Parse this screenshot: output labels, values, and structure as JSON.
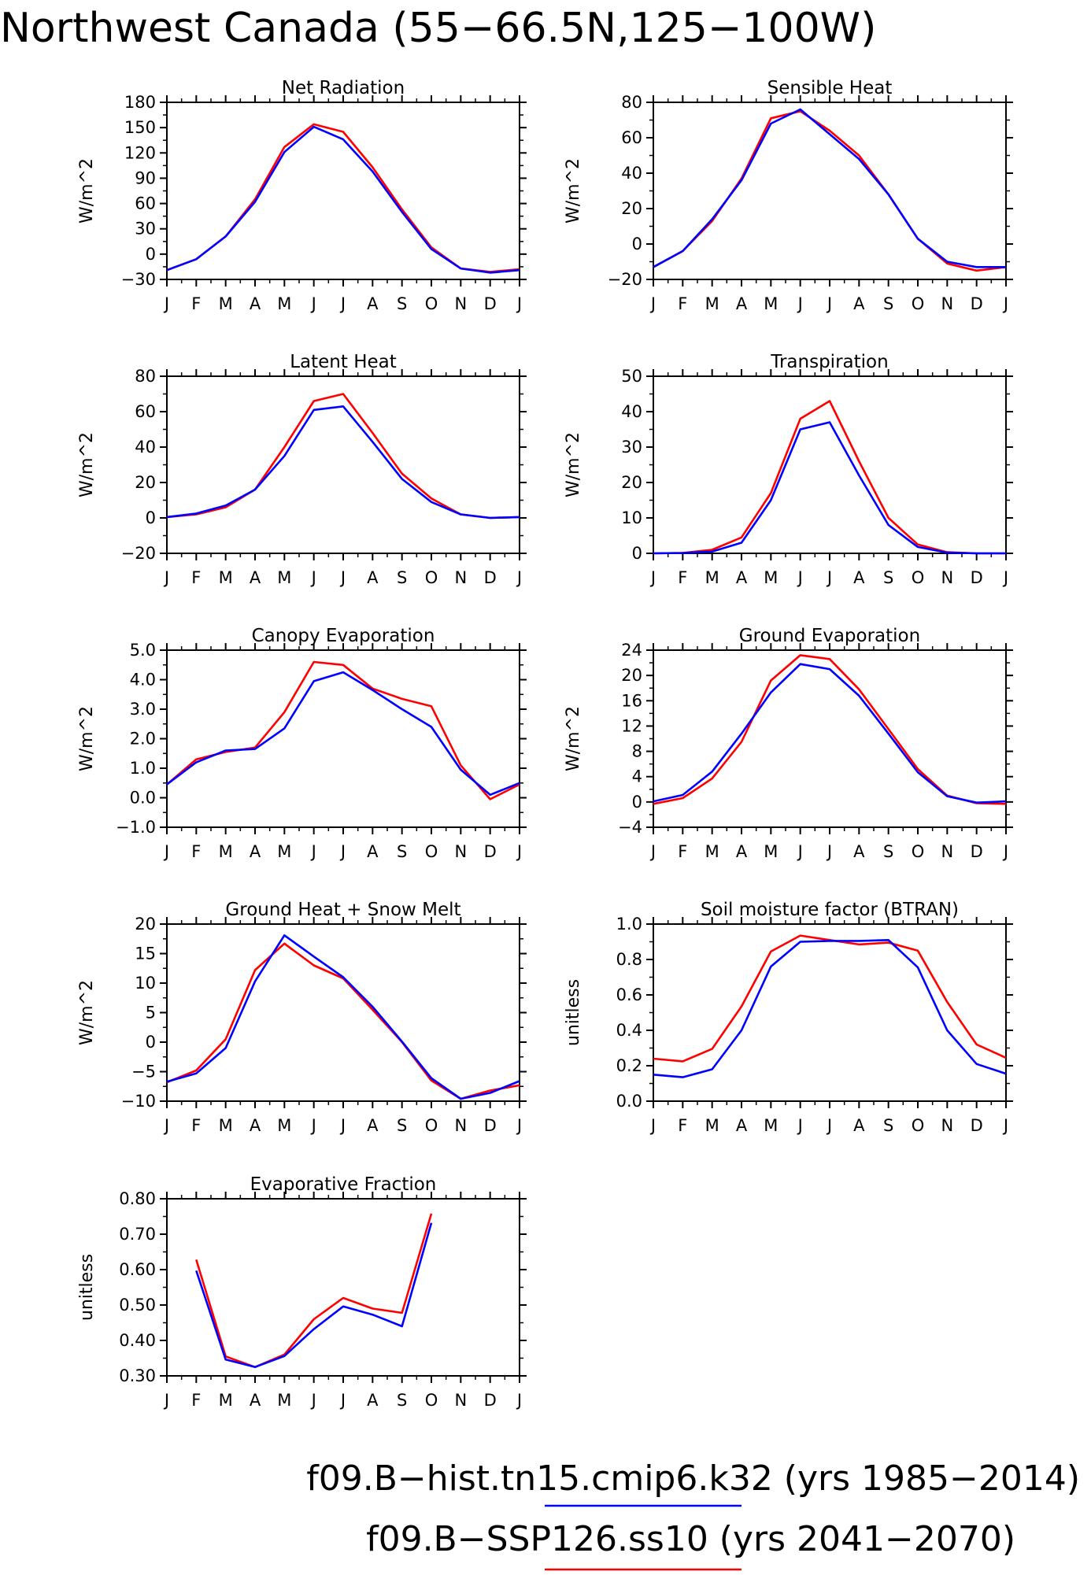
{
  "figure": {
    "title": "Northwest Canada (55−66.5N,125−100W)",
    "legend": [
      {
        "label": "f09.B−hist.tn15.cmip6.k32 (yrs 1985−2014)",
        "color": "#0000ff"
      },
      {
        "label": "f09.B−SSP126.ss10 (yrs 2041−2070)",
        "color": "#ff0000"
      }
    ]
  },
  "chart_data": [
    {
      "type": "line",
      "title": "Net Radiation",
      "ylabel": "W/m^2",
      "ylim": [
        -30,
        180
      ],
      "yticks": [
        "−30",
        "0",
        "30",
        "60",
        "90",
        "120",
        "150",
        "180"
      ],
      "categories": [
        "J",
        "F",
        "M",
        "A",
        "M",
        "J",
        "J",
        "A",
        "S",
        "O",
        "N",
        "D",
        "J"
      ],
      "series": [
        {
          "color": "#ff0000",
          "values": [
            -19,
            -6,
            21,
            65,
            127,
            154,
            145,
            103,
            53,
            8,
            -17,
            -21,
            -18
          ]
        },
        {
          "color": "#0000ff",
          "values": [
            -19,
            -6,
            21,
            62,
            121,
            151,
            136,
            98,
            50,
            6,
            -17,
            -22,
            -19
          ]
        }
      ]
    },
    {
      "type": "line",
      "title": "Sensible Heat",
      "ylabel": "W/m^2",
      "ylim": [
        -20,
        80
      ],
      "yticks": [
        "−20",
        "0",
        "20",
        "40",
        "60",
        "80"
      ],
      "categories": [
        "J",
        "F",
        "M",
        "A",
        "M",
        "J",
        "J",
        "A",
        "S",
        "O",
        "N",
        "D",
        "J"
      ],
      "series": [
        {
          "color": "#ff0000",
          "values": [
            -13,
            -4,
            13,
            37,
            71,
            75,
            64,
            50,
            28,
            3,
            -11,
            -15,
            -13
          ]
        },
        {
          "color": "#0000ff",
          "values": [
            -13,
            -4,
            14,
            36,
            68,
            76,
            62,
            48,
            28,
            3,
            -10,
            -13,
            -13
          ]
        }
      ]
    },
    {
      "type": "line",
      "title": "Latent Heat",
      "ylabel": "W/m^2",
      "ylim": [
        -20,
        80
      ],
      "yticks": [
        "−20",
        "0",
        "20",
        "40",
        "60",
        "80"
      ],
      "categories": [
        "J",
        "F",
        "M",
        "A",
        "M",
        "J",
        "J",
        "A",
        "S",
        "O",
        "N",
        "D",
        "J"
      ],
      "series": [
        {
          "color": "#ff0000",
          "values": [
            0.5,
            2,
            6,
            16,
            40,
            66,
            70,
            48,
            25,
            11,
            2,
            0,
            0.5
          ]
        },
        {
          "color": "#0000ff",
          "values": [
            0.5,
            2.5,
            7,
            16,
            35,
            61,
            63,
            43,
            22,
            9,
            2,
            0,
            0.5
          ]
        }
      ]
    },
    {
      "type": "line",
      "title": "Transpiration",
      "ylabel": "W/m^2",
      "ylim": [
        0,
        50
      ],
      "yticks": [
        "0",
        "10",
        "20",
        "30",
        "40",
        "50"
      ],
      "categories": [
        "J",
        "F",
        "M",
        "A",
        "M",
        "J",
        "J",
        "A",
        "S",
        "O",
        "N",
        "D",
        "J"
      ],
      "series": [
        {
          "color": "#ff0000",
          "values": [
            0,
            0.1,
            1,
            4.5,
            17,
            38,
            43,
            26,
            10,
            2.5,
            0.3,
            0,
            0
          ]
        },
        {
          "color": "#0000ff",
          "values": [
            0,
            0.1,
            0.5,
            3,
            15,
            35,
            37,
            22,
            8,
            1.8,
            0.2,
            0,
            0
          ]
        }
      ]
    },
    {
      "type": "line",
      "title": "Canopy Evaporation",
      "ylabel": "W/m^2",
      "ylim": [
        -1,
        5
      ],
      "yticks": [
        "−1.0",
        "0.0",
        "1.0",
        "2.0",
        "3.0",
        "4.0",
        "5.0"
      ],
      "categories": [
        "J",
        "F",
        "M",
        "A",
        "M",
        "J",
        "J",
        "A",
        "S",
        "O",
        "N",
        "D",
        "J"
      ],
      "series": [
        {
          "color": "#ff0000",
          "values": [
            0.45,
            1.3,
            1.55,
            1.7,
            2.9,
            4.6,
            4.5,
            3.7,
            3.35,
            3.1,
            1.1,
            -0.05,
            0.45
          ]
        },
        {
          "color": "#0000ff",
          "values": [
            0.45,
            1.2,
            1.6,
            1.65,
            2.35,
            3.95,
            4.25,
            3.65,
            3.0,
            2.4,
            0.95,
            0.1,
            0.5
          ]
        }
      ]
    },
    {
      "type": "line",
      "title": "Ground Evaporation",
      "ylabel": "W/m^2",
      "ylim": [
        -4,
        24
      ],
      "yticks": [
        "−4",
        "0",
        "4",
        "8",
        "12",
        "16",
        "20",
        "24"
      ],
      "categories": [
        "J",
        "F",
        "M",
        "A",
        "M",
        "J",
        "J",
        "A",
        "S",
        "O",
        "N",
        "D",
        "J"
      ],
      "series": [
        {
          "color": "#ff0000",
          "values": [
            -0.3,
            0.6,
            3.7,
            9.5,
            19.2,
            23.2,
            22.6,
            17.8,
            11.5,
            5.2,
            1.0,
            -0.2,
            -0.3
          ]
        },
        {
          "color": "#0000ff",
          "values": [
            0.1,
            1.1,
            4.8,
            10.8,
            17.3,
            21.8,
            21.0,
            16.8,
            10.8,
            4.7,
            0.9,
            -0.1,
            0.1
          ]
        }
      ]
    },
    {
      "type": "line",
      "title": "Ground Heat + Snow Melt",
      "ylabel": "W/m^2",
      "ylim": [
        -10,
        20
      ],
      "yticks": [
        "−10",
        "−5",
        "0",
        "5",
        "10",
        "15",
        "20"
      ],
      "categories": [
        "J",
        "F",
        "M",
        "A",
        "M",
        "J",
        "J",
        "A",
        "S",
        "O",
        "N",
        "D",
        "J"
      ],
      "series": [
        {
          "color": "#ff0000",
          "values": [
            -6.8,
            -4.8,
            0.5,
            12.2,
            16.7,
            13.0,
            10.8,
            5.5,
            0,
            -6.5,
            -9.6,
            -8.2,
            -7.3
          ]
        },
        {
          "color": "#0000ff",
          "values": [
            -6.7,
            -5.3,
            -1.0,
            10.3,
            18.1,
            14.5,
            11.0,
            6.0,
            0.1,
            -6.1,
            -9.6,
            -8.6,
            -6.6
          ]
        }
      ]
    },
    {
      "type": "line",
      "title": "Soil moisture factor (BTRAN)",
      "ylabel": "unitless",
      "ylim": [
        0,
        1
      ],
      "yticks": [
        "0.0",
        "0.2",
        "0.4",
        "0.6",
        "0.8",
        "1.0"
      ],
      "categories": [
        "J",
        "F",
        "M",
        "A",
        "M",
        "J",
        "J",
        "A",
        "S",
        "O",
        "N",
        "D",
        "J"
      ],
      "series": [
        {
          "color": "#ff0000",
          "values": [
            0.24,
            0.225,
            0.295,
            0.535,
            0.845,
            0.935,
            0.91,
            0.885,
            0.895,
            0.85,
            0.56,
            0.32,
            0.245
          ]
        },
        {
          "color": "#0000ff",
          "values": [
            0.15,
            0.135,
            0.18,
            0.4,
            0.76,
            0.9,
            0.905,
            0.905,
            0.91,
            0.755,
            0.4,
            0.21,
            0.155
          ]
        }
      ]
    },
    {
      "type": "line",
      "title": "Evaporative Fraction",
      "ylabel": "unitless",
      "ylim": [
        0.3,
        0.8
      ],
      "yticks": [
        "0.30",
        "0.40",
        "0.50",
        "0.60",
        "0.70",
        "0.80"
      ],
      "categories": [
        "J",
        "F",
        "M",
        "A",
        "M",
        "J",
        "J",
        "A",
        "S",
        "O",
        "N",
        "D",
        "J"
      ],
      "series": [
        {
          "color": "#ff0000",
          "values": [
            null,
            0.628,
            0.355,
            0.325,
            0.36,
            0.46,
            0.52,
            0.49,
            0.478,
            0.758,
            null,
            null,
            null
          ]
        },
        {
          "color": "#0000ff",
          "values": [
            null,
            0.597,
            0.346,
            0.325,
            0.356,
            0.432,
            0.496,
            0.473,
            0.44,
            0.732,
            null,
            null,
            null
          ]
        }
      ]
    }
  ]
}
